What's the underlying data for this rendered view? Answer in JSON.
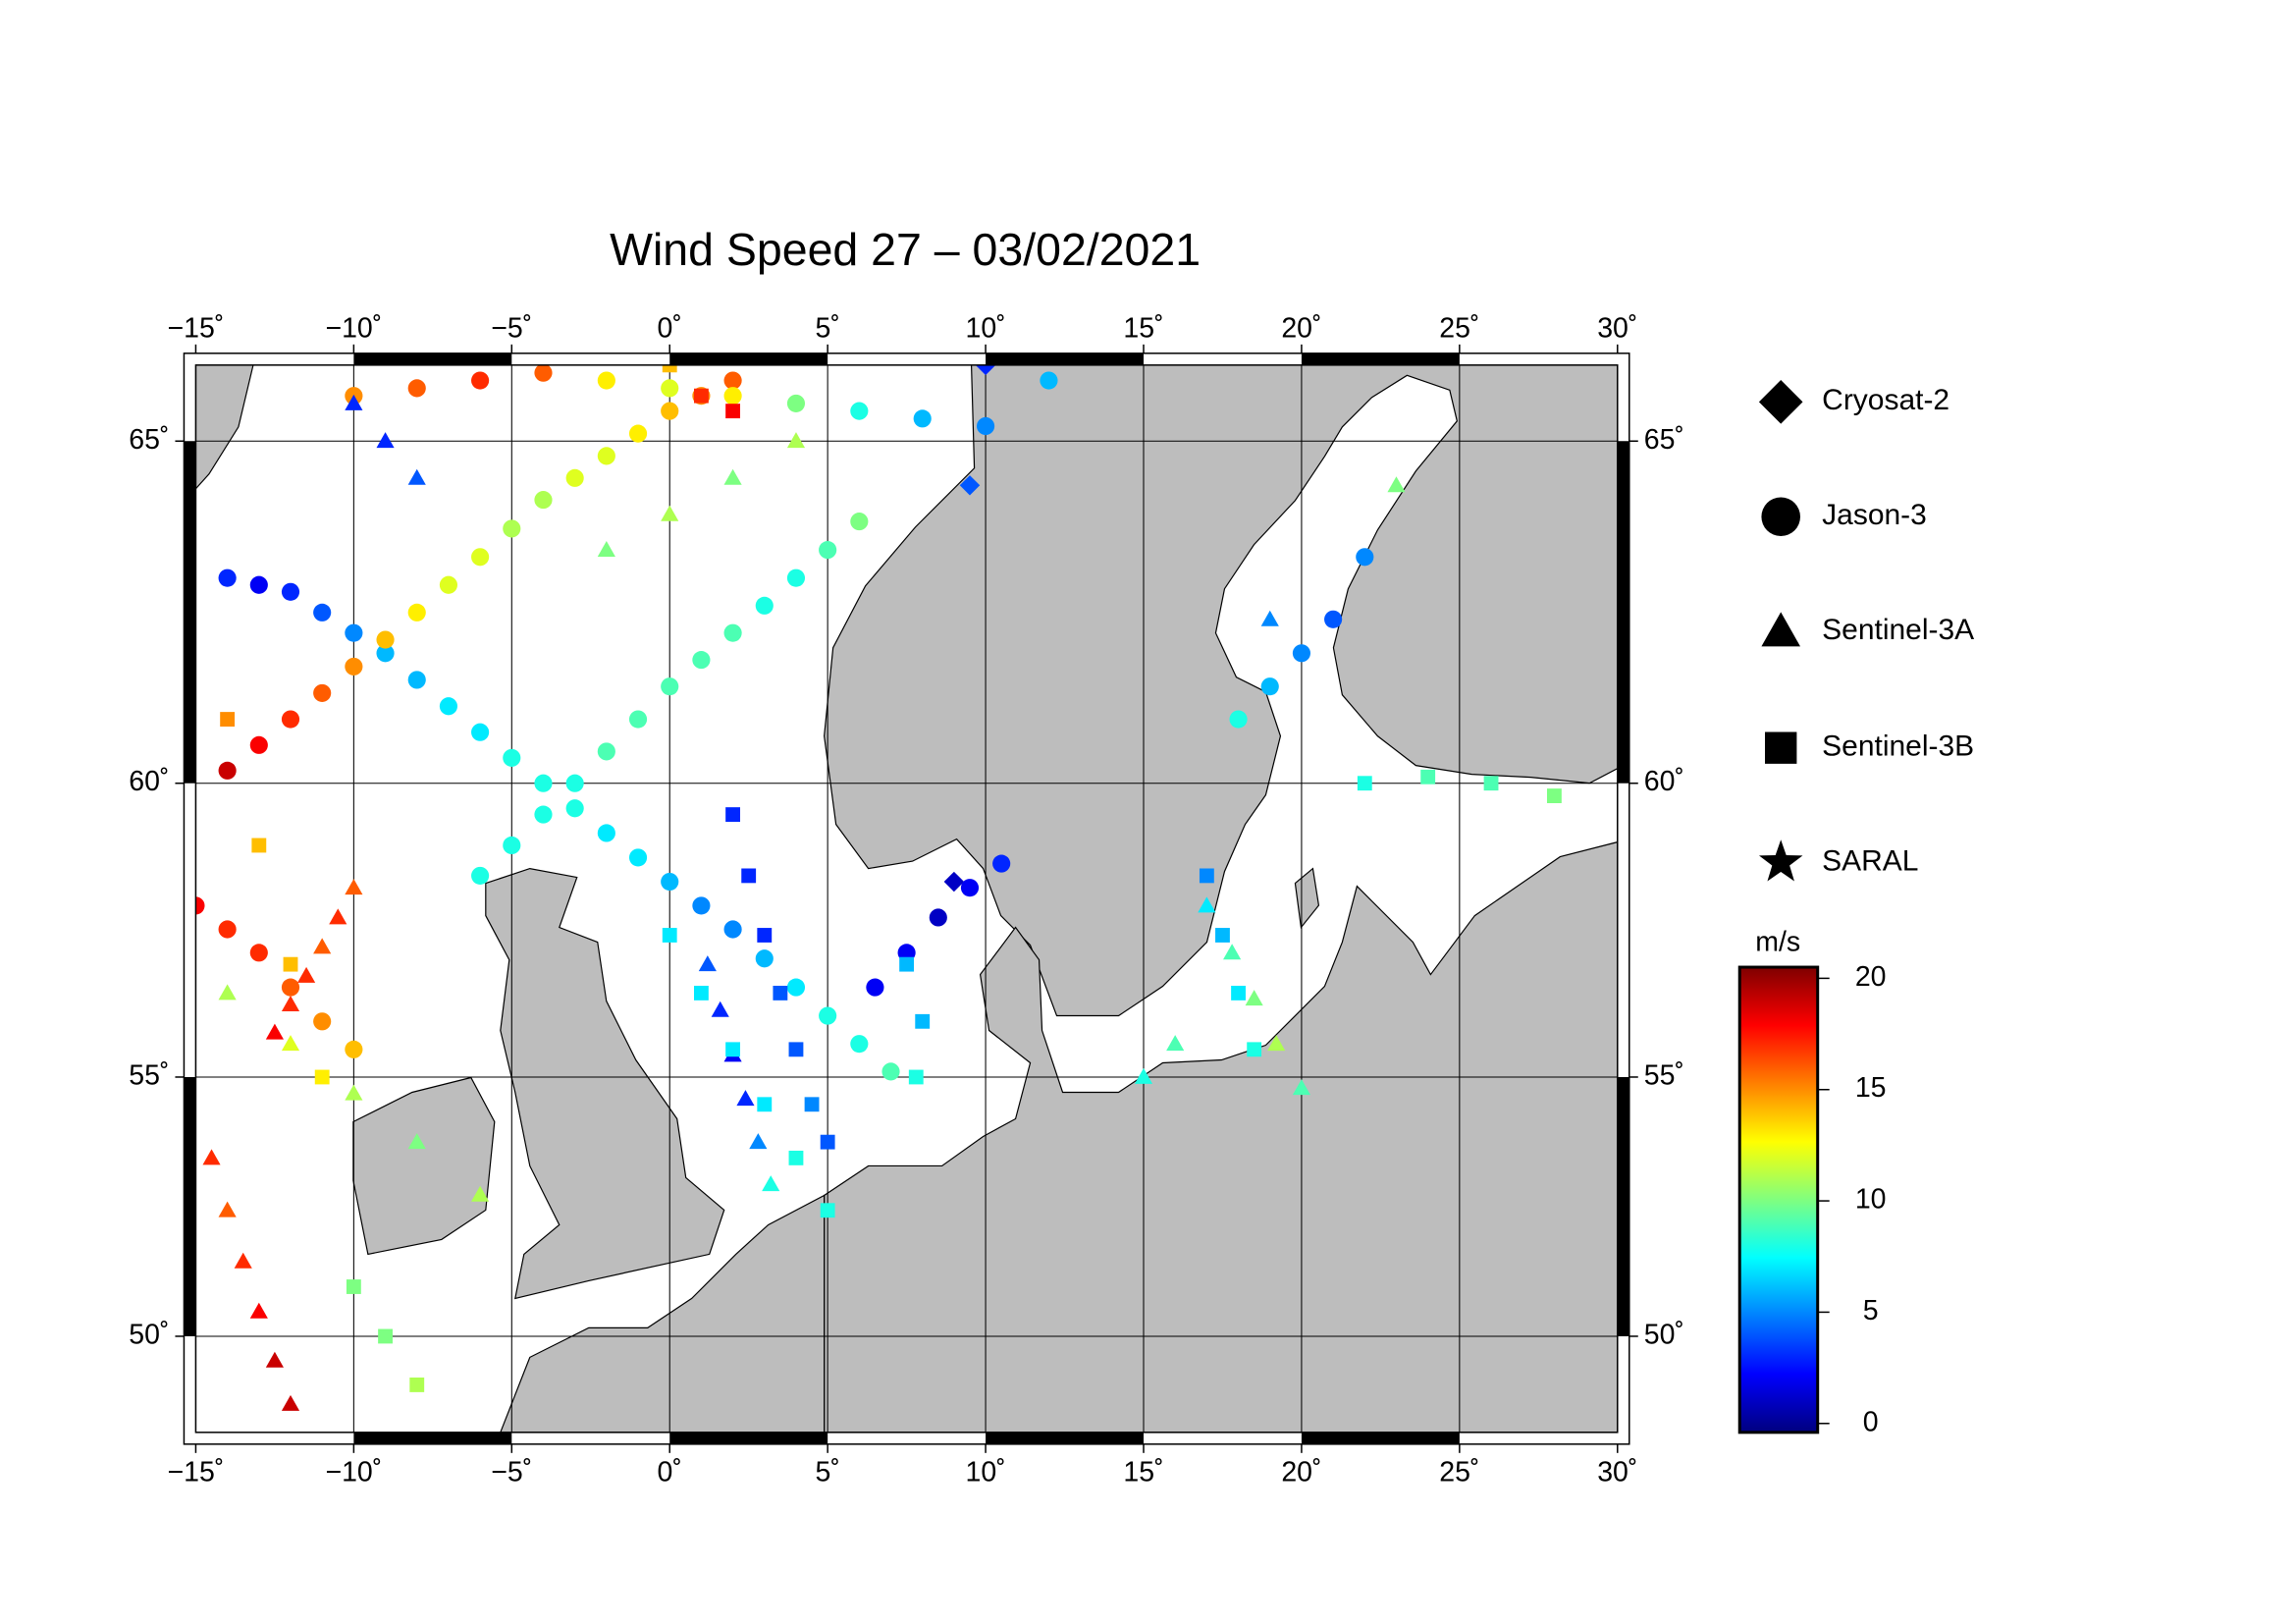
{
  "chart_data": {
    "type": "map",
    "title": "Wind Speed 27 – 03/02/2021",
    "projection": "mercator",
    "xlim": [
      -15,
      30
    ],
    "ylim": [
      48,
      66
    ],
    "xticks": [
      {
        "value": -15,
        "label": "−15˚"
      },
      {
        "value": -10,
        "label": "−10˚"
      },
      {
        "value": -5,
        "label": "−5˚"
      },
      {
        "value": 0,
        "label": "0˚"
      },
      {
        "value": 5,
        "label": "5˚"
      },
      {
        "value": 10,
        "label": "10˚"
      },
      {
        "value": 15,
        "label": "15˚"
      },
      {
        "value": 20,
        "label": "20˚"
      },
      {
        "value": 25,
        "label": "25˚"
      },
      {
        "value": 30,
        "label": "30˚"
      }
    ],
    "yticks": [
      {
        "value": 50,
        "label": "50˚"
      },
      {
        "value": 55,
        "label": "55˚"
      },
      {
        "value": 60,
        "label": "60˚"
      },
      {
        "value": 65,
        "label": "65˚"
      }
    ],
    "grid": true,
    "colorbar": {
      "label": "m/s",
      "colormap": "jet",
      "lim": [
        -0.4,
        20.5
      ],
      "ticks": [
        0,
        5,
        10,
        15,
        20
      ]
    },
    "series": [
      {
        "name": "Cryosat-2",
        "marker": "diamond",
        "lon": [
          10,
          9.5,
          9
        ],
        "lat": [
          66,
          64.4,
          58.4
        ],
        "values": [
          3,
          4,
          1
        ]
      },
      {
        "name": "Jason-3",
        "marker": "circle",
        "lon": [
          -14,
          -13,
          -12,
          -11,
          -10,
          -9,
          -8,
          -7,
          -6,
          -5,
          -4,
          -3,
          -2,
          -1,
          0,
          1,
          2,
          3,
          4,
          5,
          6,
          7,
          -14,
          -13,
          -12,
          -11,
          -10,
          -9,
          -8,
          -7,
          -6,
          -5,
          -4,
          -3,
          -2,
          -1,
          0,
          1,
          2,
          -6,
          -5,
          -4,
          -3,
          -2,
          -1,
          0,
          1,
          2,
          3,
          4,
          5,
          6,
          6.5,
          7.5,
          8.5,
          9.5,
          10.5,
          18,
          19,
          20,
          21,
          22,
          -15,
          -14,
          -13,
          -12,
          -11,
          -10,
          -10,
          -8,
          -6,
          -4,
          -2,
          0,
          2,
          4,
          6,
          8,
          10,
          12
        ],
        "lat": [
          63.1,
          63.0,
          62.9,
          62.6,
          62.3,
          62.0,
          61.6,
          61.2,
          60.8,
          60.4,
          60.0,
          59.6,
          59.2,
          58.8,
          58.4,
          58.0,
          57.6,
          57.1,
          56.6,
          56.1,
          55.6,
          55.1,
          60.2,
          60.6,
          61.0,
          61.4,
          61.8,
          62.2,
          62.6,
          63.0,
          63.4,
          63.8,
          64.2,
          64.5,
          64.8,
          65.1,
          65.4,
          65.6,
          65.8,
          58.5,
          59.0,
          59.5,
          60.0,
          60.5,
          61.0,
          61.5,
          61.9,
          62.3,
          62.7,
          63.1,
          63.5,
          63.9,
          56.6,
          57.2,
          57.8,
          58.3,
          58.7,
          61.0,
          61.5,
          62.0,
          62.5,
          63.4,
          58.0,
          57.6,
          57.2,
          56.6,
          56.0,
          55.5,
          65.6,
          65.7,
          65.8,
          65.9,
          65.8,
          65.7,
          65.6,
          65.5,
          65.4,
          65.3,
          65.2,
          65.8
        ],
        "values": [
          3,
          2,
          3,
          4,
          5,
          6,
          6,
          7,
          7,
          8,
          8,
          8,
          7,
          7,
          6,
          5,
          5,
          6,
          7,
          8,
          8,
          9,
          19,
          18,
          17,
          16,
          15,
          14,
          13,
          12,
          12,
          11,
          11,
          12,
          12,
          13,
          14,
          15,
          16,
          8,
          8,
          8,
          8,
          9,
          9,
          9,
          9,
          9,
          8,
          8,
          9,
          10,
          2,
          2,
          1,
          2,
          3,
          8,
          6,
          5,
          4,
          5,
          18,
          17,
          17,
          16,
          15,
          14,
          15,
          16,
          17,
          16,
          13,
          12,
          13,
          10,
          8,
          6,
          5,
          6
        ]
      },
      {
        "name": "Sentinel-3A",
        "marker": "triangle",
        "lon": [
          -12.5,
          -12,
          -11.5,
          -11,
          -10.5,
          -10,
          -14.5,
          -14,
          -13.5,
          -13,
          -12.5,
          -12,
          -14,
          -12,
          -10,
          -8,
          -6,
          1.2,
          1.6,
          2,
          2.4,
          2.8,
          3.2,
          -8,
          -9,
          -10,
          17,
          17.8,
          18.5,
          19.2,
          20,
          15,
          16,
          23,
          19,
          -2,
          0,
          2,
          4
        ],
        "lat": [
          55.8,
          56.3,
          56.8,
          57.3,
          57.8,
          58.3,
          53.5,
          52.5,
          51.5,
          50.5,
          49.5,
          48.6,
          56.5,
          55.6,
          54.7,
          53.8,
          52.8,
          57.0,
          56.2,
          55.4,
          54.6,
          53.8,
          53.0,
          64.5,
          65.0,
          65.5,
          58.0,
          57.2,
          56.4,
          55.6,
          54.8,
          55.0,
          55.6,
          64.4,
          62.5,
          63.5,
          64.0,
          64.5,
          65.0
        ],
        "values": [
          18,
          17,
          17,
          16,
          17,
          16,
          17,
          16,
          17,
          18,
          19,
          19,
          11,
          12,
          11,
          10,
          11,
          4,
          3,
          2,
          3,
          5,
          8,
          4,
          3,
          3,
          7,
          9,
          10,
          11,
          9,
          8,
          9,
          10,
          5,
          10,
          11,
          10,
          11
        ]
      },
      {
        "name": "Sentinel-3B",
        "marker": "square",
        "lon": [
          2,
          2.5,
          3,
          3.5,
          4,
          4.5,
          5,
          0,
          1,
          2,
          3,
          4,
          5,
          -14,
          -13,
          -12,
          -11,
          7.5,
          8,
          7.8,
          17,
          17.5,
          18,
          18.5,
          22,
          24,
          26,
          28,
          -10,
          -9,
          -8,
          0,
          1,
          2
        ],
        "lat": [
          59.5,
          58.5,
          57.5,
          56.5,
          55.5,
          54.5,
          53.8,
          57.5,
          56.5,
          55.5,
          54.5,
          53.5,
          52.5,
          61,
          59,
          57,
          55,
          57,
          56,
          55,
          58.5,
          57.5,
          56.5,
          55.5,
          60,
          60.1,
          60,
          59.8,
          51,
          50,
          49,
          66,
          65.6,
          65.4
        ],
        "values": [
          3,
          3,
          3,
          4,
          4,
          5,
          4,
          7,
          7,
          7,
          7,
          8,
          8,
          15,
          14,
          14,
          13,
          6,
          6,
          8,
          5,
          6,
          7,
          8,
          8,
          9,
          9,
          10,
          10,
          10,
          11,
          14,
          17,
          18
        ]
      },
      {
        "name": "SARAL",
        "marker": "star",
        "lon": [],
        "lat": [],
        "values": []
      }
    ]
  }
}
